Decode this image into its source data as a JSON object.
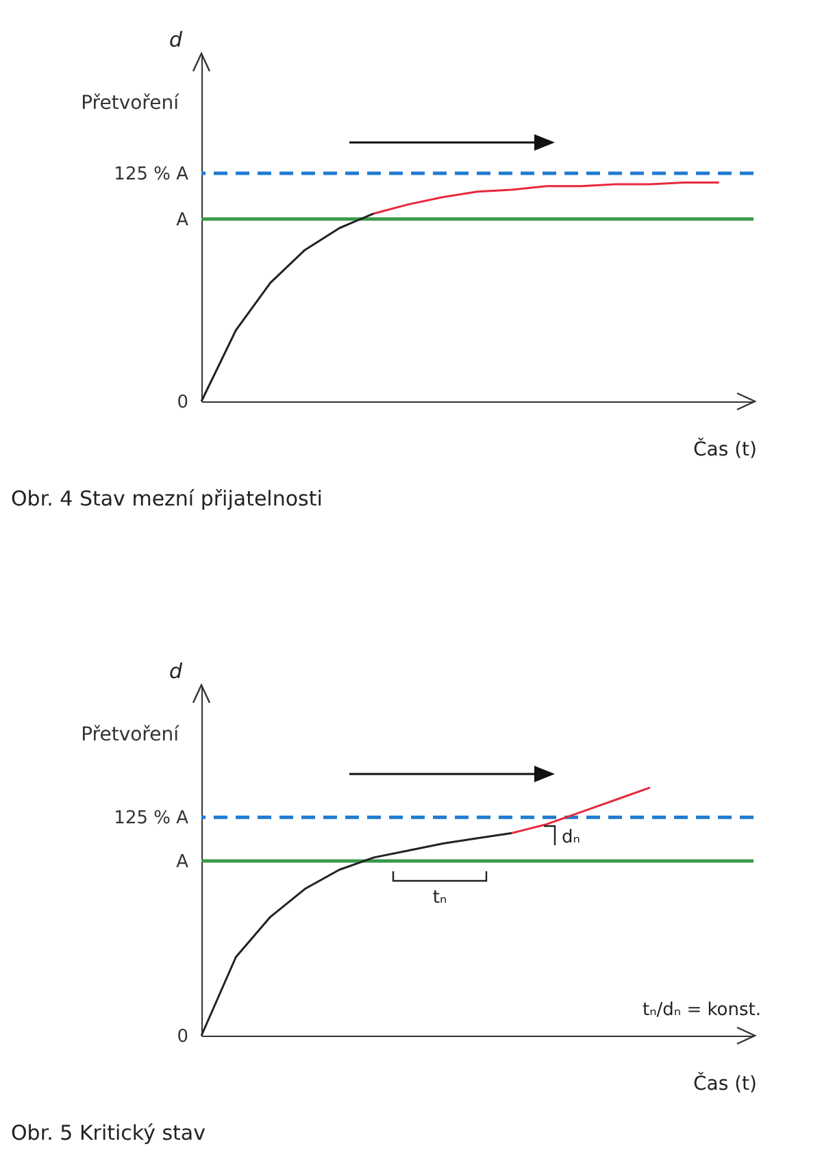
{
  "chart_data": [
    {
      "type": "line",
      "title": "Obr. 4  Stav mezní přijatelnosti",
      "xlabel": "Čas (t)",
      "ylabel": "Přetvoření",
      "annotations": [
        "d"
      ],
      "categories": [
        null,
        null,
        null,
        null,
        null,
        null,
        null,
        null,
        null,
        null,
        null,
        null,
        null,
        null,
        null,
        null,
        null
      ],
      "series": [
        {
          "color": "#222222",
          "values": [
            0,
            0.39,
            0.65,
            0.83,
            0.95,
            1.03,
            null,
            null,
            null,
            null,
            null,
            null,
            null,
            null,
            null,
            null,
            null
          ]
        },
        {
          "color": "#e8283c",
          "values": [
            null,
            null,
            null,
            null,
            null,
            1.03,
            1.08,
            1.12,
            1.15,
            1.16,
            1.18,
            1.18,
            1.19,
            1.19,
            1.2,
            1.2,
            null
          ]
        }
      ],
      "ylim": [
        0,
        1.9
      ],
      "yticks": [
        {
          "value": 0,
          "label": "0"
        },
        {
          "value": 1,
          "label": "A"
        },
        {
          "value": 1.25,
          "label": "125 % A"
        }
      ],
      "ref_lines": [
        {
          "axis": "y",
          "value": 1,
          "color": "#3a9a4a"
        },
        {
          "axis": "y",
          "value": 1.25,
          "color": "#1f7bd0",
          "line_style": "dashed"
        }
      ],
      "tick_labels": "y"
    },
    {
      "type": "line",
      "title": "Obr. 5  Kritický stav",
      "xlabel": "Čas (t)",
      "ylabel": "Přetvoření",
      "annotations": [
        "d",
        "tₙ",
        "dₙ",
        "tₙ/dₙ = konst."
      ],
      "categories": [
        null,
        null,
        null,
        null,
        null,
        null,
        null,
        null,
        null,
        null,
        null,
        null,
        null,
        null,
        null,
        null,
        null
      ],
      "series": [
        {
          "color": "#222222",
          "values": [
            0,
            0.45,
            0.68,
            0.84,
            0.95,
            1.02,
            1.06,
            1.1,
            1.13,
            1.16,
            null,
            null,
            null,
            null,
            null,
            null,
            null
          ]
        },
        {
          "color": "#e8283c",
          "values": [
            null,
            null,
            null,
            null,
            null,
            null,
            null,
            null,
            null,
            1.16,
            1.21,
            1.28,
            1.35,
            1.42,
            null,
            null,
            null
          ]
        }
      ],
      "ylim": [
        0,
        2.0
      ],
      "yticks": [
        {
          "value": 0,
          "label": "0"
        },
        {
          "value": 1,
          "label": "A"
        },
        {
          "value": 1.25,
          "label": "125 % A"
        }
      ],
      "ref_lines": [
        {
          "axis": "y",
          "value": 1,
          "color": "#3a9a4a"
        },
        {
          "axis": "y",
          "value": 1.25,
          "color": "#1f7bd0",
          "line_style": "dashed"
        }
      ],
      "tick_labels": "y"
    }
  ]
}
